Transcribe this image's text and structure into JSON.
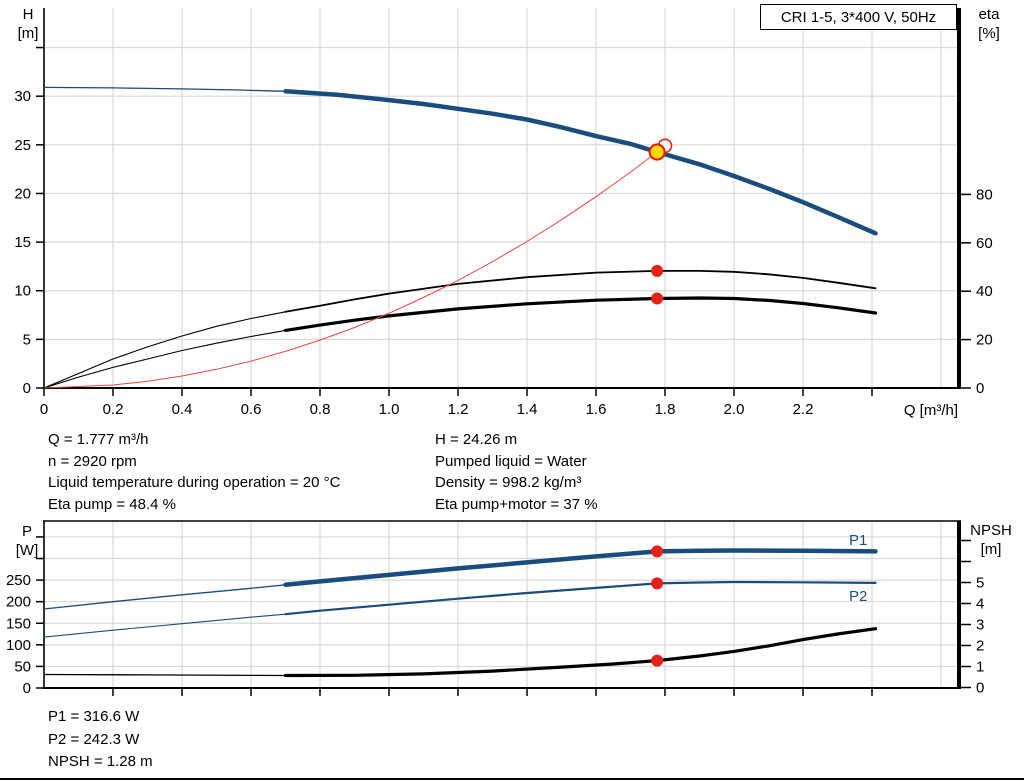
{
  "title_box": {
    "label": "CRI 1-5, 3*400 V, 50Hz"
  },
  "colors": {
    "curve_blue": "#1a4c7d",
    "curve_black": "#000000",
    "curve_red": "#e8463c",
    "marker_red": "#e3231a",
    "marker_yellow": "#ffdf00",
    "grid": "#d9d9d9",
    "axis": "#000000"
  },
  "info_panel": {
    "left": [
      "Q = 1.777 m³/h",
      "n = 2920 rpm",
      "Liquid temperature during operation = 20 °C",
      "Eta pump = 48.4 %"
    ],
    "right": [
      "H = 24.26 m",
      "Pumped liquid = Water",
      "Density = 998.2 kg/m³",
      "Eta pump+motor = 37 %"
    ]
  },
  "footer_panel": [
    "P1 = 316.6 W",
    "P2 = 242.3 W",
    "NPSH = 1.28 m"
  ],
  "chart_data": [
    {
      "id": "qh",
      "type": "line",
      "title": "CRI 1-5, 3*400 V, 50Hz",
      "x_axis": {
        "label": "Q [m³/h]",
        "min": 0,
        "max": 2.65,
        "tick_labels": [
          "0",
          "0.2",
          "0.4",
          "0.6",
          "0.8",
          "1.0",
          "1.2",
          "1.4",
          "1.6",
          "1.8",
          "2.0",
          "2.2"
        ],
        "unlabeled_ticks": [
          2.4
        ],
        "gridlines": [
          0.2,
          0.4,
          0.6,
          0.8,
          1.0,
          1.2,
          1.4,
          1.6,
          1.8,
          2.0,
          2.2,
          2.4,
          2.6
        ]
      },
      "y_left": {
        "label": "H",
        "unit": "[m]",
        "min": 0,
        "max": 39,
        "tick_labels": [
          "0",
          "5",
          "10",
          "15",
          "20",
          "25",
          "30"
        ],
        "unlabeled_ticks": [
          35
        ],
        "gridlines": [
          5,
          10,
          15,
          20,
          25,
          30,
          35
        ]
      },
      "y_right": {
        "label": "eta",
        "unit": "[%]",
        "min": 0,
        "max": 100,
        "tick_labels": [
          "0",
          "20",
          "40",
          "60",
          "80"
        ],
        "unlabeled_ticks": []
      },
      "series": [
        {
          "name": "H-curve",
          "axis": "left",
          "color": "curve_blue",
          "width": 4.5,
          "lead_width": 1.3,
          "split_x": 0.7,
          "points": [
            [
              0,
              30.9
            ],
            [
              0.1,
              30.88
            ],
            [
              0.2,
              30.85
            ],
            [
              0.3,
              30.8
            ],
            [
              0.4,
              30.75
            ],
            [
              0.55,
              30.65
            ],
            [
              0.7,
              30.5
            ],
            [
              0.85,
              30.15
            ],
            [
              1.0,
              29.6
            ],
            [
              1.1,
              29.2
            ],
            [
              1.2,
              28.7
            ],
            [
              1.3,
              28.2
            ],
            [
              1.4,
              27.6
            ],
            [
              1.5,
              26.8
            ],
            [
              1.6,
              25.9
            ],
            [
              1.7,
              25.1
            ],
            [
              1.777,
              24.26
            ],
            [
              1.9,
              23.0
            ],
            [
              2.0,
              21.8
            ],
            [
              2.1,
              20.5
            ],
            [
              2.2,
              19.1
            ],
            [
              2.3,
              17.6
            ],
            [
              2.41,
              15.9
            ]
          ]
        },
        {
          "name": "eta-pump",
          "axis": "right",
          "color": "curve_black",
          "width": 1.8,
          "lead_width": 1.1,
          "split_x": 0.7,
          "points": [
            [
              0,
              0
            ],
            [
              0.1,
              6
            ],
            [
              0.2,
              12
            ],
            [
              0.3,
              17
            ],
            [
              0.4,
              21.5
            ],
            [
              0.5,
              25.5
            ],
            [
              0.6,
              28.7
            ],
            [
              0.7,
              31.5
            ],
            [
              0.8,
              34
            ],
            [
              0.9,
              36.6
            ],
            [
              1.0,
              39
            ],
            [
              1.2,
              43
            ],
            [
              1.4,
              45.8
            ],
            [
              1.6,
              47.7
            ],
            [
              1.777,
              48.4
            ],
            [
              1.9,
              48.4
            ],
            [
              2.0,
              48
            ],
            [
              2.1,
              47
            ],
            [
              2.2,
              45.5
            ],
            [
              2.3,
              43.5
            ],
            [
              2.41,
              41.2
            ]
          ]
        },
        {
          "name": "eta-pump-motor",
          "axis": "right",
          "color": "curve_black",
          "width": 3.2,
          "lead_width": 1.1,
          "split_x": 0.7,
          "points": [
            [
              0,
              0
            ],
            [
              0.1,
              4.5
            ],
            [
              0.2,
              8.5
            ],
            [
              0.3,
              12
            ],
            [
              0.4,
              15.5
            ],
            [
              0.5,
              18.5
            ],
            [
              0.6,
              21.3
            ],
            [
              0.7,
              23.8
            ],
            [
              0.8,
              26
            ],
            [
              0.9,
              28
            ],
            [
              1.0,
              29.8
            ],
            [
              1.2,
              32.7
            ],
            [
              1.4,
              34.8
            ],
            [
              1.6,
              36.3
            ],
            [
              1.777,
              37
            ],
            [
              1.9,
              37.2
            ],
            [
              2.0,
              37
            ],
            [
              2.1,
              36.2
            ],
            [
              2.2,
              34.9
            ],
            [
              2.3,
              33.2
            ],
            [
              2.41,
              31
            ]
          ]
        },
        {
          "name": "system-curve",
          "axis": "left",
          "color": "curve_red",
          "width": 1,
          "points": [
            [
              0,
              0
            ],
            [
              0.2,
              0.31
            ],
            [
              0.3,
              0.69
            ],
            [
              0.4,
              1.23
            ],
            [
              0.5,
              1.92
            ],
            [
              0.6,
              2.77
            ],
            [
              0.7,
              3.76
            ],
            [
              0.8,
              4.92
            ],
            [
              0.9,
              6.22
            ],
            [
              1.0,
              7.68
            ],
            [
              1.1,
              9.3
            ],
            [
              1.2,
              11.06
            ],
            [
              1.3,
              12.98
            ],
            [
              1.4,
              15.06
            ],
            [
              1.5,
              17.29
            ],
            [
              1.6,
              19.67
            ],
            [
              1.7,
              22.2
            ],
            [
              1.777,
              24.26
            ]
          ]
        }
      ],
      "markers": [
        {
          "x": 1.8,
          "y": 24.9,
          "axis": "left",
          "style": "open-red"
        },
        {
          "x": 1.777,
          "y": 24.26,
          "axis": "left",
          "style": "duty-yellow"
        },
        {
          "x": 1.777,
          "y": 48.4,
          "axis": "right",
          "style": "dot-red"
        },
        {
          "x": 1.777,
          "y": 37.0,
          "axis": "right",
          "style": "dot-red"
        }
      ]
    },
    {
      "id": "power-npsh",
      "type": "line",
      "x_axis": {
        "label": "",
        "min": 0,
        "max": 2.65,
        "tick_labels": [],
        "unlabeled_ticks": [
          0.2,
          0.4,
          0.6,
          0.8,
          1.0,
          1.2,
          1.4,
          1.6,
          1.8,
          2.0,
          2.2,
          2.4
        ],
        "gridlines": [
          0.2,
          0.4,
          0.6,
          0.8,
          1.0,
          1.2,
          1.4,
          1.6,
          1.8,
          2.0,
          2.2,
          2.4,
          2.6
        ]
      },
      "y_left": {
        "label": "P",
        "unit": "[W]",
        "min": 0,
        "max": 385,
        "tick_labels": [
          "0",
          "50",
          "100",
          "150",
          "200",
          "250"
        ],
        "unlabeled_ticks": [
          300,
          350
        ],
        "gridlines": [
          50,
          100,
          150,
          200,
          250,
          300,
          350
        ]
      },
      "y_right": {
        "label": "NPSH",
        "unit": "[m]",
        "min": 0,
        "max": 7.9,
        "tick_labels": [
          "0",
          "1",
          "2",
          "3",
          "4",
          "5"
        ],
        "unlabeled_ticks": [
          6,
          7
        ]
      },
      "series": [
        {
          "name": "P1",
          "axis": "left",
          "color": "curve_blue",
          "width": 4.5,
          "lead_width": 1.3,
          "split_x": 0.7,
          "points": [
            [
              0,
              183
            ],
            [
              0.2,
              200
            ],
            [
              0.4,
              216
            ],
            [
              0.6,
              231
            ],
            [
              0.7,
              239
            ],
            [
              0.8,
              247
            ],
            [
              1.0,
              262
            ],
            [
              1.2,
              277
            ],
            [
              1.4,
              291
            ],
            [
              1.6,
              305
            ],
            [
              1.777,
              316.6
            ],
            [
              1.9,
              318
            ],
            [
              2.0,
              318.5
            ],
            [
              2.2,
              318
            ],
            [
              2.41,
              316.5
            ]
          ]
        },
        {
          "name": "P2",
          "axis": "left",
          "color": "curve_blue",
          "width": 2.2,
          "lead_width": 1.1,
          "split_x": 0.7,
          "points": [
            [
              0,
              118
            ],
            [
              0.2,
              134
            ],
            [
              0.4,
              149
            ],
            [
              0.6,
              164
            ],
            [
              0.7,
              171
            ],
            [
              0.8,
              179
            ],
            [
              1.0,
              193
            ],
            [
              1.2,
              207
            ],
            [
              1.4,
              220
            ],
            [
              1.6,
              232
            ],
            [
              1.777,
              242.3
            ],
            [
              1.9,
              244.5
            ],
            [
              2.0,
              245.5
            ],
            [
              2.2,
              245
            ],
            [
              2.41,
              243.5
            ]
          ]
        },
        {
          "name": "NPSH",
          "axis": "right",
          "color": "curve_black",
          "width": 3.2,
          "lead_width": 1.3,
          "split_x": 0.7,
          "points": [
            [
              0,
              0.62
            ],
            [
              0.3,
              0.6
            ],
            [
              0.7,
              0.57
            ],
            [
              0.9,
              0.58
            ],
            [
              1.1,
              0.65
            ],
            [
              1.3,
              0.78
            ],
            [
              1.5,
              0.97
            ],
            [
              1.65,
              1.12
            ],
            [
              1.777,
              1.28
            ],
            [
              1.9,
              1.5
            ],
            [
              2.0,
              1.72
            ],
            [
              2.1,
              1.98
            ],
            [
              2.2,
              2.28
            ],
            [
              2.3,
              2.55
            ],
            [
              2.41,
              2.8
            ]
          ]
        }
      ],
      "markers": [
        {
          "x": 1.777,
          "y": 316.6,
          "axis": "left",
          "style": "dot-red"
        },
        {
          "x": 1.777,
          "y": 242.3,
          "axis": "left",
          "style": "dot-red"
        },
        {
          "x": 1.777,
          "y": 1.28,
          "axis": "right",
          "style": "dot-red"
        }
      ]
    }
  ]
}
